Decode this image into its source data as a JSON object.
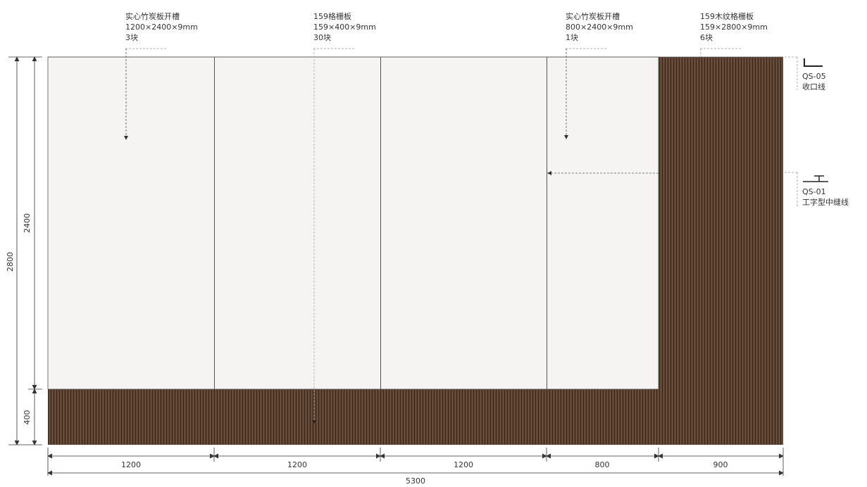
{
  "chart_data": {
    "type": "elevation-drawing",
    "units": "mm",
    "wall": {
      "width": 5300,
      "height": 2800
    },
    "panel_height": 2400,
    "skirting_height": 400,
    "panels": [
      1200,
      1200,
      1200,
      800
    ],
    "wood_section": 900,
    "callouts": [
      {
        "name": "实心竹炭板开槽",
        "spec": "1200×2400×9mm",
        "qty": "3块"
      },
      {
        "name": "159格栅板",
        "spec": "159×400×9mm",
        "qty": "30块"
      },
      {
        "name": "实心竹炭板开槽",
        "spec": "800×2400×9mm",
        "qty": "1块"
      },
      {
        "name": "159木纹格栅板",
        "spec": "159×2800×9mm",
        "qty": "6块"
      }
    ],
    "trims": [
      {
        "code": "QS-05",
        "name": "收口线"
      },
      {
        "code": "QS-01",
        "name": "工字型中缝线"
      }
    ],
    "dims": {
      "bottom": [
        "1200",
        "1200",
        "1200",
        "800",
        "900"
      ],
      "total": "5300",
      "left_outer": "2800",
      "left_panel": "2400",
      "left_skirting": "400"
    },
    "colors": {
      "panel": "#f5f4f2",
      "wood": "#5e4330",
      "line": "#333333"
    }
  }
}
